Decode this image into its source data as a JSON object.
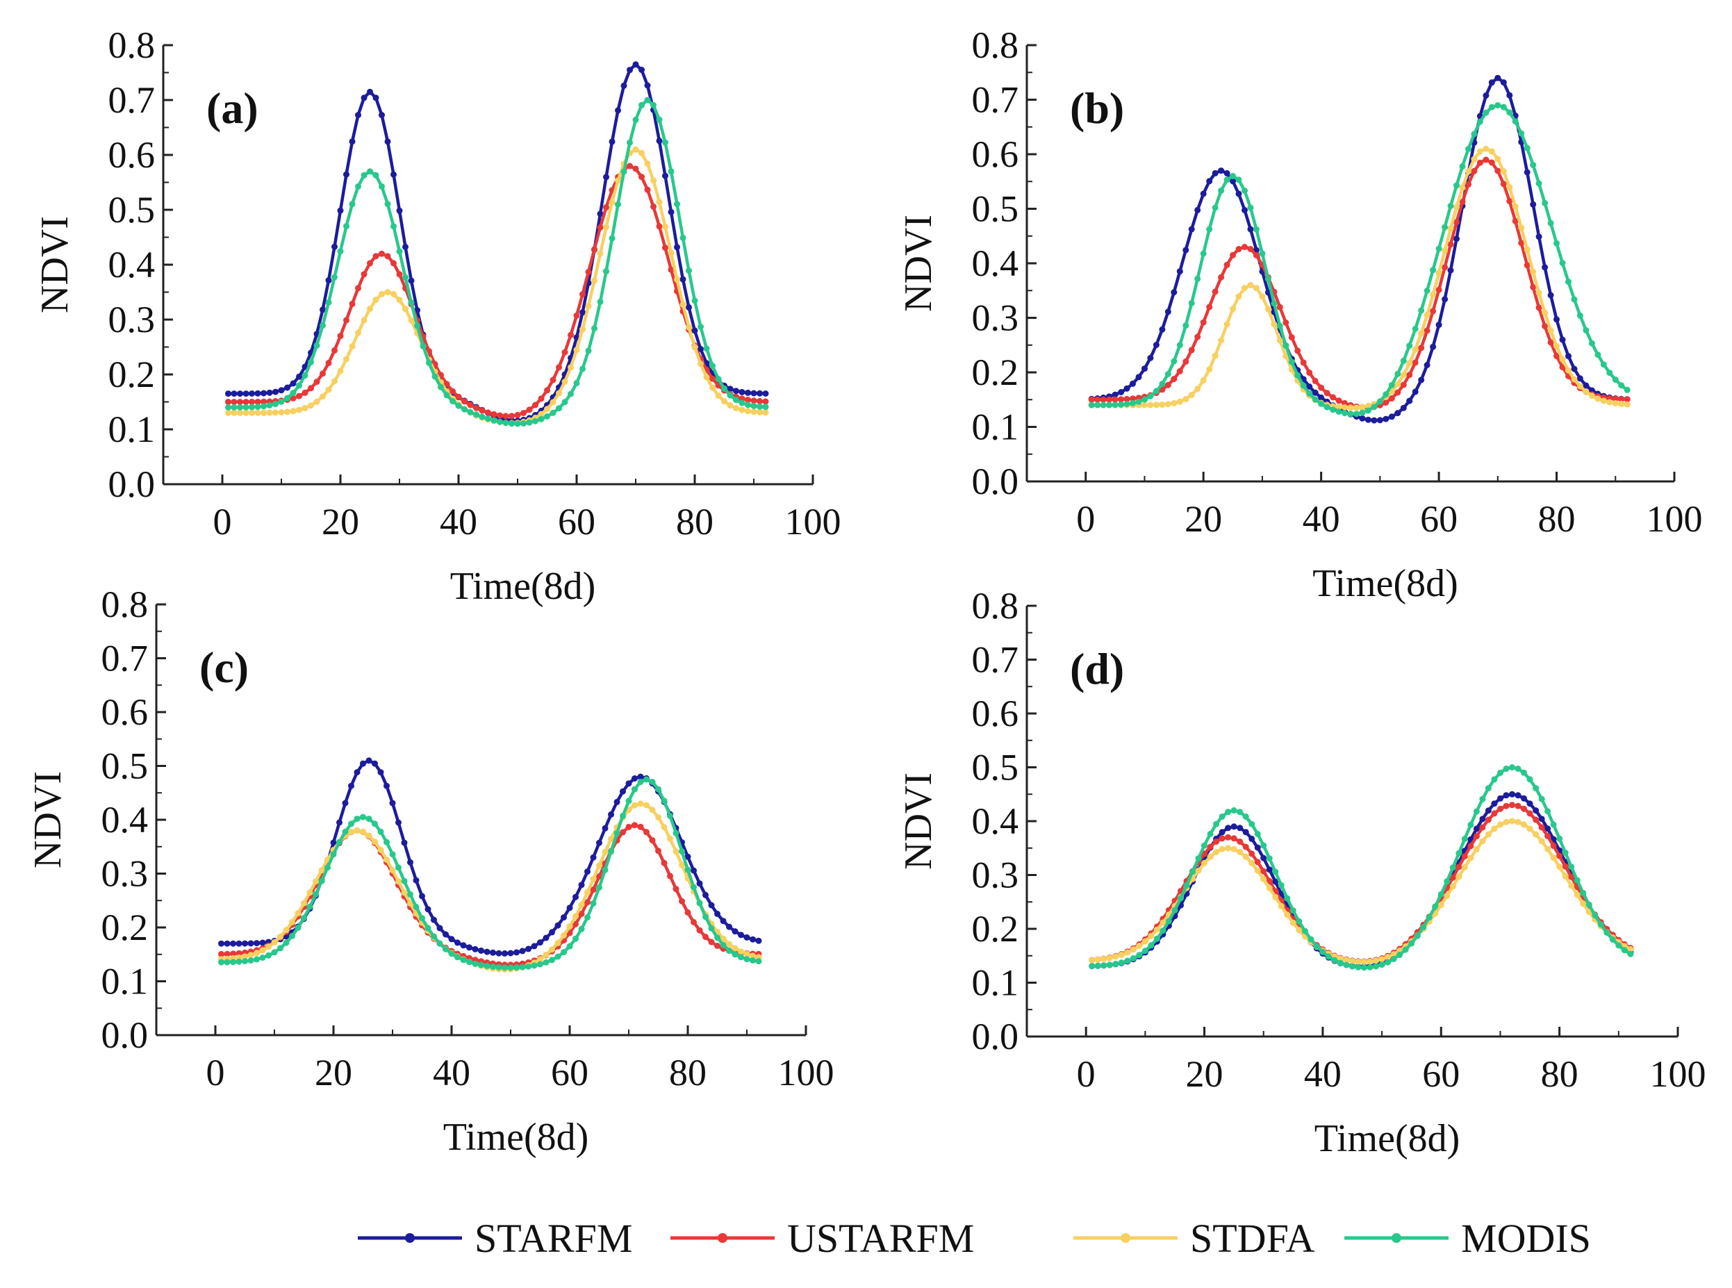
{
  "chart_data": [
    {
      "type": "line",
      "panel_label": "(a)",
      "xlabel": "Time(8d)",
      "ylabel": "NDVI",
      "xlim": [
        -10,
        100
      ],
      "ylim": [
        0.0,
        0.8
      ],
      "xticks": [
        0,
        20,
        40,
        60,
        80,
        100
      ],
      "yticks": [
        0.0,
        0.1,
        0.2,
        0.3,
        0.4,
        0.5,
        0.6,
        0.7,
        0.8
      ],
      "series_params": [
        {
          "name": "STARFM",
          "base": 0.165,
          "peaks": [
            [
              25,
              0.55,
              5.0
            ],
            [
              70,
              0.6,
              5.5
            ]
          ],
          "post": 0.05
        },
        {
          "name": "USTARFM",
          "base": 0.15,
          "peaks": [
            [
              27,
              0.27,
              5.5
            ],
            [
              69,
              0.43,
              6.5
            ]
          ],
          "post": 0.03
        },
        {
          "name": "STDFA",
          "base": 0.13,
          "peaks": [
            [
              28,
              0.22,
              5.5
            ],
            [
              70,
              0.48,
              6.0
            ]
          ],
          "post": 0.02
        },
        {
          "name": "MODIS",
          "base": 0.14,
          "peaks": [
            [
              25,
              0.43,
              5.5
            ],
            [
              72,
              0.56,
              5.5
            ]
          ],
          "post": 0.03
        }
      ]
    },
    {
      "type": "line",
      "panel_label": "(b)",
      "xlabel": "Time(8d)",
      "ylabel": "NDVI",
      "xlim": [
        -10,
        100
      ],
      "ylim": [
        0.0,
        0.8
      ],
      "xticks": [
        0,
        20,
        40,
        60,
        80,
        100
      ],
      "yticks": [
        0.0,
        0.1,
        0.2,
        0.3,
        0.4,
        0.5,
        0.6,
        0.7,
        0.8
      ],
      "series_params": [
        {
          "name": "STARFM",
          "base": 0.15,
          "peaks": [
            [
              23,
              0.42,
              6.5
            ],
            [
              70,
              0.59,
              6.0
            ]
          ],
          "post": 0.04
        },
        {
          "name": "USTARFM",
          "base": 0.15,
          "peaks": [
            [
              27,
              0.28,
              6.0
            ],
            [
              68,
              0.44,
              6.5
            ]
          ],
          "post": 0.02
        },
        {
          "name": "STDFA",
          "base": 0.14,
          "peaks": [
            [
              28,
              0.22,
              4.5
            ],
            [
              68,
              0.47,
              7.0
            ]
          ],
          "post": 0.01
        },
        {
          "name": "MODIS",
          "base": 0.14,
          "peaks": [
            [
              25,
              0.42,
              5.5
            ],
            [
              70,
              0.55,
              9.0
            ]
          ],
          "post": 0.04
        }
      ]
    },
    {
      "type": "line",
      "panel_label": "(c)",
      "xlabel": "Time(8d)",
      "ylabel": "NDVI",
      "xlim": [
        -10,
        100
      ],
      "ylim": [
        0.0,
        0.8
      ],
      "xticks": [
        0,
        20,
        40,
        60,
        80,
        100
      ],
      "yticks": [
        0.0,
        0.1,
        0.2,
        0.3,
        0.4,
        0.5,
        0.6,
        0.7,
        0.8
      ],
      "series_params": [
        {
          "name": "STARFM",
          "base": 0.17,
          "peaks": [
            [
              26,
              0.34,
              5.5
            ],
            [
              72,
              0.31,
              7.0
            ]
          ],
          "post": 0.02
        },
        {
          "name": "USTARFM",
          "base": 0.15,
          "peaks": [
            [
              24,
              0.23,
              6.5
            ],
            [
              71,
              0.24,
              6.0
            ]
          ],
          "post": 0.02
        },
        {
          "name": "STDFA",
          "base": 0.14,
          "peaks": [
            [
              24,
              0.24,
              7.0
            ],
            [
              72,
              0.29,
              7.0
            ]
          ],
          "post": 0.02
        },
        {
          "name": "MODIS",
          "base": 0.135,
          "peaks": [
            [
              25,
              0.27,
              6.5
            ],
            [
              73,
              0.34,
              6.0
            ]
          ],
          "post": 0.01
        }
      ]
    },
    {
      "type": "line",
      "panel_label": "(d)",
      "xlabel": "Time(8d)",
      "ylabel": "NDVI",
      "xlim": [
        -10,
        100
      ],
      "ylim": [
        0.0,
        0.8
      ],
      "xticks": [
        0,
        20,
        40,
        60,
        80,
        100
      ],
      "yticks": [
        0.0,
        0.1,
        0.2,
        0.3,
        0.4,
        0.5,
        0.6,
        0.7,
        0.8
      ],
      "series_params": [
        {
          "name": "STARFM",
          "base": 0.13,
          "peaks": [
            [
              25,
              0.26,
              7.0
            ],
            [
              72,
              0.32,
              9.0
            ]
          ],
          "post": 0.01
        },
        {
          "name": "USTARFM",
          "base": 0.14,
          "peaks": [
            [
              24,
              0.23,
              7.5
            ],
            [
              72,
              0.29,
              9.0
            ]
          ],
          "post": 0.01
        },
        {
          "name": "STDFA",
          "base": 0.14,
          "peaks": [
            [
              24,
              0.21,
              7.5
            ],
            [
              72,
              0.26,
              9.0
            ]
          ],
          "post": 0.01
        },
        {
          "name": "MODIS",
          "base": 0.13,
          "peaks": [
            [
              25,
              0.29,
              7.0
            ],
            [
              72,
              0.37,
              8.5
            ]
          ],
          "post": 0.01
        }
      ]
    }
  ],
  "legend": {
    "placement": "bottom",
    "items": [
      {
        "name": "STARFM",
        "color": "#1c1c9c"
      },
      {
        "name": "USTARFM",
        "color": "#e83838"
      },
      {
        "name": "STDFA",
        "color": "#f8d060"
      },
      {
        "name": "MODIS",
        "color": "#28c88c"
      }
    ]
  }
}
